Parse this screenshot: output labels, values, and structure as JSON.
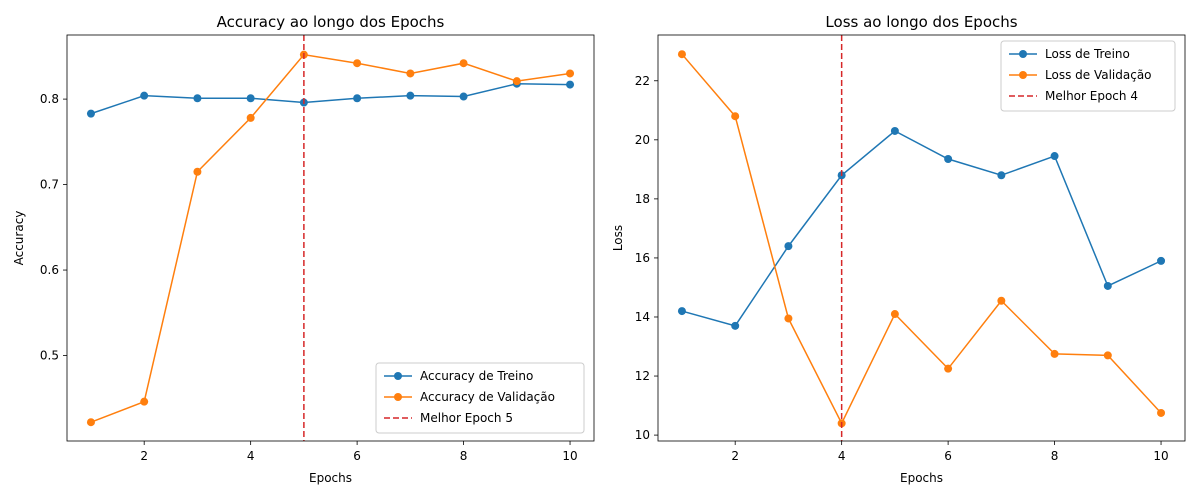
{
  "colors": {
    "train": "#1f77b4",
    "validation": "#ff7f0e",
    "best": "#d62728",
    "axes": "#000000",
    "legend_border": "#cccccc"
  },
  "chart_data": [
    {
      "type": "line",
      "title": "Accuracy ao longo dos Epochs",
      "xlabel": "Epochs",
      "ylabel": "Accuracy",
      "xlim": [
        0.55,
        10.45
      ],
      "ylim": [
        0.4,
        0.875
      ],
      "xticks": [
        2,
        4,
        6,
        8,
        10
      ],
      "yticks": [
        0.5,
        0.6,
        0.7,
        0.8
      ],
      "grid": false,
      "legend_position": "lower-right",
      "x": [
        1,
        2,
        3,
        4,
        5,
        6,
        7,
        8,
        9,
        10
      ],
      "series": [
        {
          "name": "Accuracy de Treino",
          "values": [
            0.783,
            0.804,
            0.801,
            0.801,
            0.796,
            0.801,
            0.804,
            0.803,
            0.818,
            0.817
          ]
        },
        {
          "name": "Accuracy de Validação",
          "values": [
            0.422,
            0.446,
            0.715,
            0.778,
            0.852,
            0.842,
            0.83,
            0.842,
            0.821,
            0.83
          ]
        }
      ],
      "vline": {
        "x": 5,
        "name": "Melhor Epoch 5"
      }
    },
    {
      "type": "line",
      "title": "Loss ao longo dos Epochs",
      "xlabel": "Epochs",
      "ylabel": "Loss",
      "xlim": [
        0.55,
        10.45
      ],
      "ylim": [
        9.8,
        23.55
      ],
      "xticks": [
        2,
        4,
        6,
        8,
        10
      ],
      "yticks": [
        10,
        12,
        14,
        16,
        18,
        20,
        22
      ],
      "grid": false,
      "legend_position": "upper-right",
      "x": [
        1,
        2,
        3,
        4,
        5,
        6,
        7,
        8,
        9,
        10
      ],
      "series": [
        {
          "name": "Loss de Treino",
          "values": [
            14.2,
            13.7,
            16.4,
            18.8,
            20.3,
            19.35,
            18.8,
            19.45,
            15.05,
            15.9
          ]
        },
        {
          "name": "Loss de Validação",
          "values": [
            22.9,
            20.8,
            13.95,
            10.4,
            14.1,
            12.25,
            14.55,
            12.75,
            12.7,
            10.75
          ]
        }
      ],
      "vline": {
        "x": 4,
        "name": "Melhor Epoch 4"
      }
    }
  ]
}
